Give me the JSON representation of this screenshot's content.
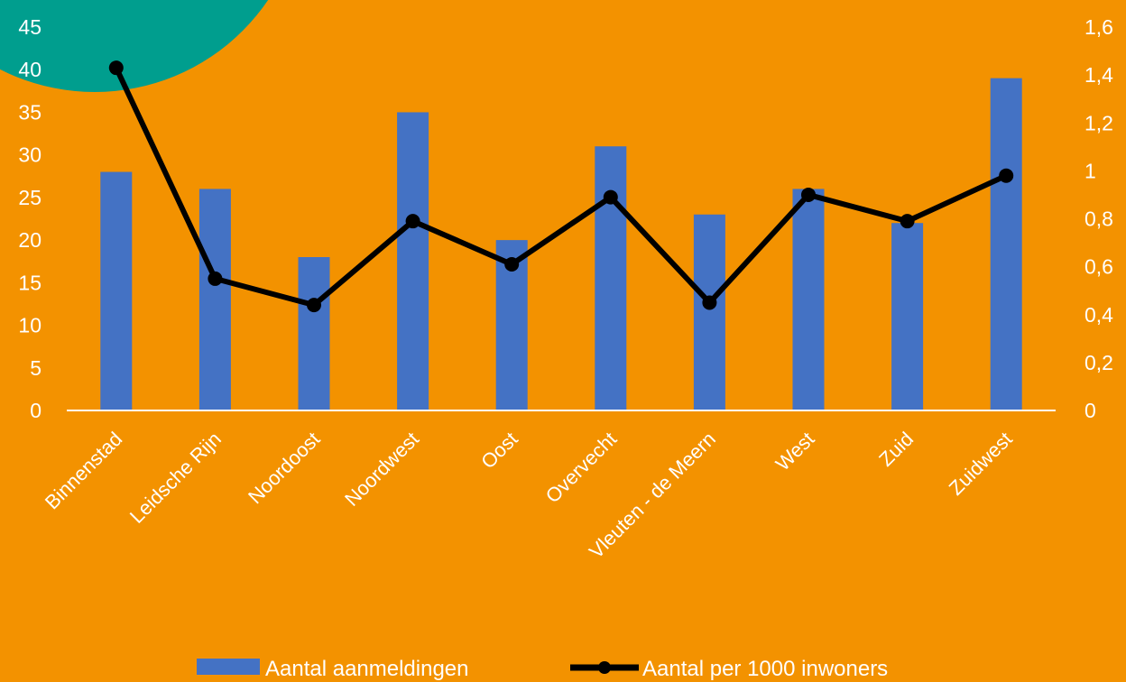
{
  "chart_data": {
    "type": "bar",
    "categories": [
      "Binnenstad",
      "Leidsche Rijn",
      "Noordoost",
      "Noordwest",
      "Oost",
      "Overvecht",
      "Vleuten - de Meern",
      "West",
      "Zuid",
      "Zuidwest"
    ],
    "series": [
      {
        "name": "Aantal aanmeldingen",
        "type": "bar",
        "axis": "left",
        "color": "#4472C4",
        "values": [
          28,
          26,
          18,
          35,
          20,
          31,
          23,
          26,
          22,
          39
        ]
      },
      {
        "name": "Aantal per 1000 inwoners",
        "type": "line",
        "axis": "right",
        "color": "#000000",
        "values": [
          1.43,
          0.55,
          0.44,
          0.79,
          0.61,
          0.89,
          0.45,
          0.9,
          0.79,
          0.98
        ]
      }
    ],
    "y_left": {
      "min": 0,
      "max": 45,
      "ticks": [
        "0",
        "5",
        "10",
        "15",
        "20",
        "25",
        "30",
        "35",
        "40",
        "45"
      ]
    },
    "y_right": {
      "min": 0,
      "max": 1.6,
      "ticks": [
        "0",
        "0,2",
        "0,4",
        "0,6",
        "0,8",
        "1",
        "1,2",
        "1,4",
        "1,6"
      ]
    },
    "legend_position": "bottom",
    "grid": false
  },
  "colors": {
    "background": "#F39200",
    "accent_circle": "#009E8E",
    "axis_line": "#ffffff"
  }
}
